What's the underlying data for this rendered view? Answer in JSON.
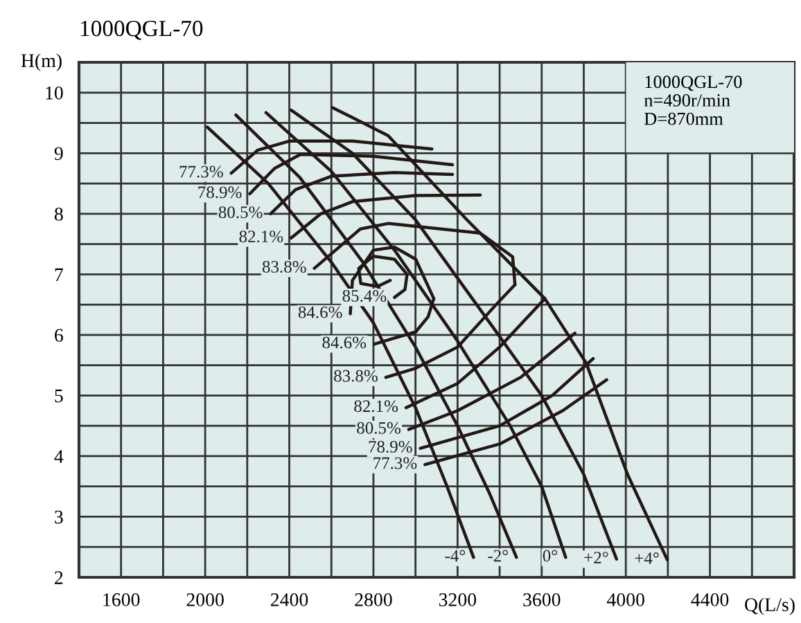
{
  "chart_data": {
    "type": "line",
    "title": "1000QGL-70",
    "xlabel": "Q(L/s)",
    "ylabel": "H(m)",
    "annotations": [
      "1000QGL-70\nn=490r/min\nD=870mm"
    ],
    "xlim": [
      1400,
      4800
    ],
    "ylim": [
      2,
      10.5
    ],
    "xticks": [
      {
        "value": 1600,
        "label": "1600"
      },
      {
        "value": 1800,
        "label": null
      },
      {
        "value": 2000,
        "label": "2000"
      },
      {
        "value": 2200,
        "label": null
      },
      {
        "value": 2400,
        "label": "2400"
      },
      {
        "value": 2600,
        "label": null
      },
      {
        "value": 2800,
        "label": "2800"
      },
      {
        "value": 3000,
        "label": null
      },
      {
        "value": 3200,
        "label": "3200"
      },
      {
        "value": 3400,
        "label": null
      },
      {
        "value": 3600,
        "label": "3600"
      },
      {
        "value": 3800,
        "label": null
      },
      {
        "value": 4000,
        "label": "4000"
      },
      {
        "value": 4200,
        "label": null
      },
      {
        "value": 4400,
        "label": "4400"
      },
      {
        "value": 4600,
        "label": null
      }
    ],
    "yticks": [
      2,
      {
        "value": 2.5,
        "label": null
      },
      3,
      {
        "value": 3.5,
        "label": null
      },
      4,
      {
        "value": 4.5,
        "label": null
      },
      5,
      {
        "value": 5.5,
        "label": null
      },
      6,
      {
        "value": 6.5,
        "label": null
      },
      7,
      {
        "value": 7.5,
        "label": null
      },
      8,
      {
        "value": 8.5,
        "label": null
      },
      9,
      {
        "value": 9.5,
        "label": null
      },
      10
    ],
    "grid": true,
    "legend": false,
    "marker": "none",
    "line_style": "solid",
    "series": [
      {
        "name": "-4°",
        "color": "#231815",
        "x": [
          3276,
          3150,
          3000,
          2800,
          2600,
          2300,
          2010
        ],
        "values": [
          2.33,
          3.5,
          4.8,
          6.2,
          7.2,
          8.5,
          9.43
        ]
      },
      {
        "name": "-2°",
        "color": "#231815",
        "x": [
          3480,
          3350,
          3200,
          3000,
          2750,
          2450,
          2146
        ],
        "values": [
          2.33,
          3.4,
          4.5,
          5.8,
          7.2,
          8.6,
          9.63
        ]
      },
      {
        "name": "0°",
        "color": "#231815",
        "x": [
          3714,
          3600,
          3450,
          3200,
          2900,
          2600,
          2289
        ],
        "values": [
          2.33,
          3.5,
          4.5,
          5.9,
          7.4,
          8.7,
          9.67
        ]
      },
      {
        "name": "+2°",
        "color": "#231815",
        "x": [
          3956,
          3800,
          3600,
          3374,
          3000,
          2700,
          2409
        ],
        "values": [
          2.3,
          3.7,
          5.0,
          6.1,
          7.9,
          9.0,
          9.71
        ]
      },
      {
        "name": "+4°",
        "color": "#231815",
        "x": [
          4197,
          4008,
          3811,
          3615,
          3242,
          2870,
          2607
        ],
        "values": [
          2.29,
          3.7,
          5.54,
          6.6,
          7.91,
          9.29,
          9.75
        ]
      },
      {
        "name": "77.3%",
        "color": "#231815",
        "x": [
          2124,
          2250,
          2400,
          2700,
          3078
        ],
        "values": [
          8.67,
          9.05,
          9.2,
          9.2,
          9.07
        ]
      },
      {
        "name": "78.9%",
        "color": "#231815",
        "x": [
          2212,
          2330,
          2453,
          2800,
          3176
        ],
        "values": [
          8.33,
          8.75,
          8.98,
          8.95,
          8.81
        ]
      },
      {
        "name": "80.5%",
        "color": "#231815",
        "x": [
          2311,
          2430,
          2600,
          2900,
          3176
        ],
        "values": [
          8.0,
          8.4,
          8.62,
          8.68,
          8.65
        ]
      },
      {
        "name": "82.1%",
        "color": "#231815",
        "x": [
          2409,
          2550,
          2700,
          3000,
          3308
        ],
        "values": [
          7.6,
          8.0,
          8.2,
          8.3,
          8.31
        ]
      },
      {
        "name": "83.8%",
        "color": "#231815",
        "x": [
          2519,
          2738,
          2870,
          3308,
          3462,
          3473
        ],
        "values": [
          7.1,
          7.75,
          7.84,
          7.68,
          7.29,
          6.83
        ]
      },
      {
        "name": "85.4%",
        "color": "#231815",
        "x": [
          2900,
          2950,
          2960,
          2900,
          2800,
          2730,
          2740,
          2820,
          2880
        ],
        "values": [
          6.62,
          6.75,
          7.0,
          7.25,
          7.3,
          7.1,
          6.85,
          6.8,
          6.9
        ]
      },
      {
        "name": "84.6%",
        "color": "#231815",
        "x": [
          2690,
          2700,
          2800,
          2900,
          3001,
          3087
        ],
        "values": [
          6.35,
          6.9,
          7.4,
          7.45,
          7.25,
          6.6
        ]
      },
      {
        "name": "84.6%",
        "color": "#231815",
        "x": [
          2804,
          2900,
          3001,
          3060,
          3087
        ],
        "values": [
          5.85,
          5.95,
          6.05,
          6.3,
          6.6
        ]
      },
      {
        "name": "83.8%",
        "color": "#231815",
        "x": [
          2859,
          3000,
          3200,
          3383,
          3473
        ],
        "values": [
          5.3,
          5.45,
          5.8,
          6.5,
          6.83
        ]
      },
      {
        "name": "82.1%",
        "color": "#231815",
        "x": [
          2955,
          3200,
          3400,
          3615
        ],
        "values": [
          4.8,
          5.2,
          5.8,
          6.6
        ]
      },
      {
        "name": "80.5%",
        "color": "#231815",
        "x": [
          2968,
          3200,
          3500,
          3758
        ],
        "values": [
          4.44,
          4.75,
          5.3,
          6.03
        ]
      },
      {
        "name": "78.9%",
        "color": "#231815",
        "x": [
          3023,
          3400,
          3650,
          3845
        ],
        "values": [
          4.13,
          4.5,
          5.0,
          5.61
        ]
      },
      {
        "name": "77.3%",
        "color": "#231815",
        "x": [
          3045,
          3400,
          3700,
          3909
        ],
        "values": [
          3.86,
          4.2,
          4.75,
          5.26
        ]
      }
    ]
  }
}
